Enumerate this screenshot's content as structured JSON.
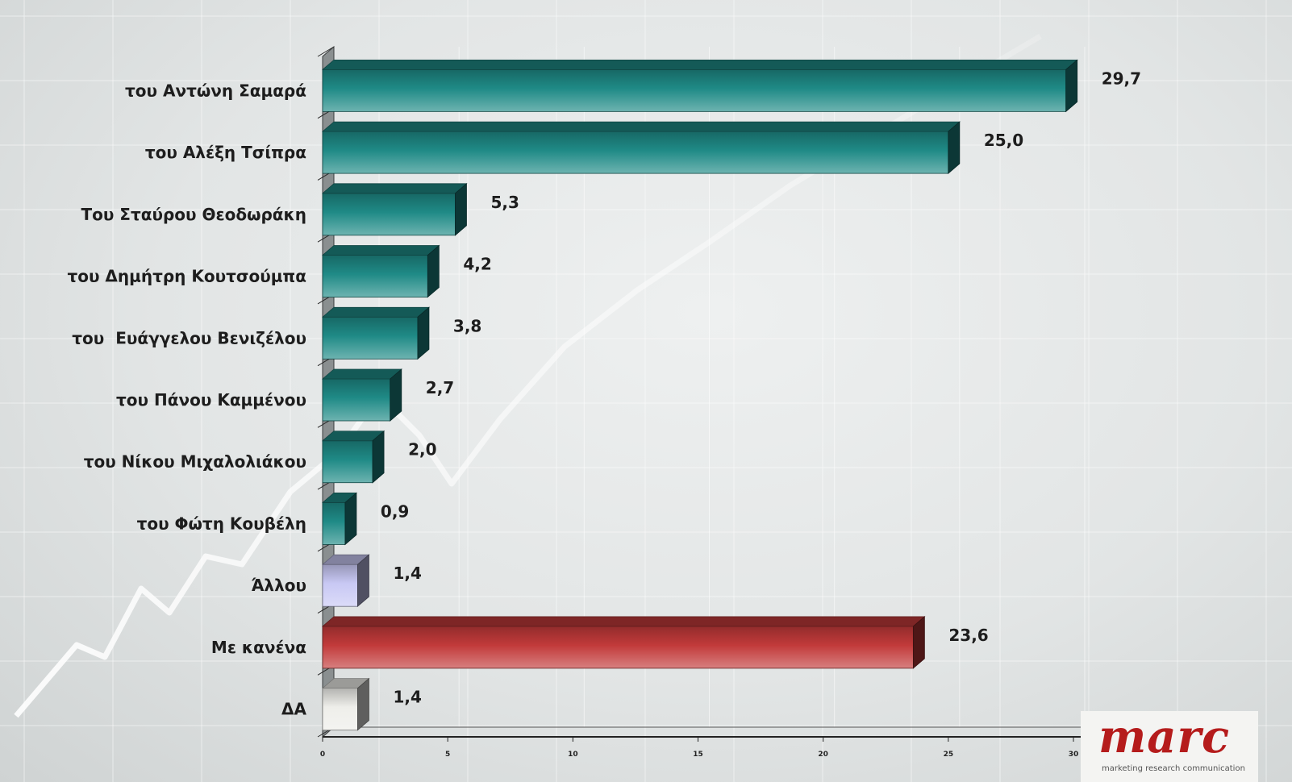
{
  "chart_data": {
    "type": "bar",
    "orientation": "horizontal",
    "categories": [
      "του Αντώνη Σαμαρά",
      "του Αλέξη Τσίπρα",
      "Του Σταύρου Θεοδωράκη",
      "του Δημήτρη Κουτσούμπα",
      "του  Ευάγγελου Βενιζέλου",
      "του Πάνου Καμμένου",
      "του Νίκου Μιχαλολιάκου",
      "του Φώτη Κουβέλη",
      "Άλλου",
      "Με κανένα",
      "ΔΑ"
    ],
    "values": [
      29.7,
      25.0,
      5.3,
      4.2,
      3.8,
      2.7,
      2.0,
      0.9,
      1.4,
      23.6,
      1.4
    ],
    "value_labels": [
      "29,7",
      "25,0",
      "5,3",
      "4,2",
      "3,8",
      "2,7",
      "2,0",
      "0,9",
      "1,4",
      "23,6",
      "1,4"
    ],
    "bar_colors": [
      "#1f8a86",
      "#1f8a86",
      "#1f8a86",
      "#1f8a86",
      "#1f8a86",
      "#1f8a86",
      "#1f8a86",
      "#1f8a86",
      "#c8c8f4",
      "#c23a3a",
      "#eeeeea"
    ],
    "xlim": [
      0,
      30
    ],
    "xticks": [
      0,
      5,
      10,
      15,
      20,
      25,
      30
    ],
    "xtick_labels": [
      "0",
      "5",
      "10",
      "15",
      "20",
      "25",
      "30"
    ],
    "grid": true,
    "title": "",
    "xlabel": "",
    "ylabel": ""
  },
  "logo": {
    "name": "marc",
    "tagline": "marketing research communication"
  }
}
